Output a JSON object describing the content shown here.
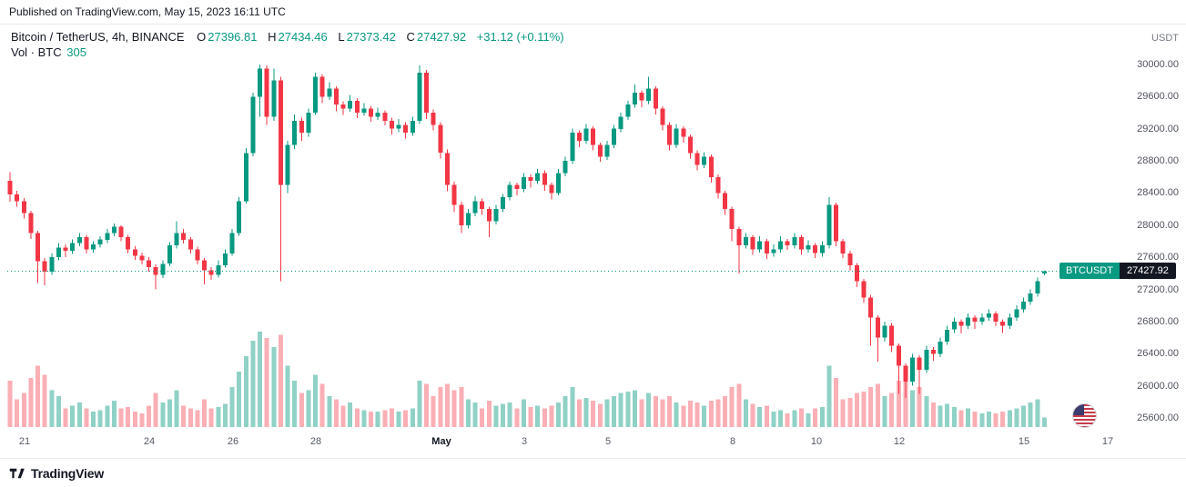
{
  "published_bar": {
    "text": "Published on TradingView.com, May 15, 2023 16:11 UTC"
  },
  "legend": {
    "title": "Bitcoin / TetherUS, 4h, BINANCE",
    "o_label": "O",
    "o_value": "27396.81",
    "h_label": "H",
    "h_value": "27434.46",
    "l_label": "L",
    "l_value": "27373.42",
    "c_label": "C",
    "c_value": "27427.92",
    "change": "+31.12 (+0.11%)",
    "vol_label": "Vol · BTC",
    "vol_value": "305"
  },
  "axis": {
    "currency": "USDT"
  },
  "price_badge": {
    "symbol": "BTCUSDT",
    "price": "27427.92"
  },
  "footer": {
    "brand": "TradingView"
  },
  "colors": {
    "up": "#089981",
    "down": "#F23645",
    "vol_up": "rgba(8,153,129,0.45)",
    "vol_down": "rgba(242,54,69,0.40)",
    "last_price_line": "#089981",
    "badge_symbol_bg": "#089981",
    "badge_price_bg": "#131722"
  },
  "chart_data": {
    "type": "candlestick",
    "symbol": "BTCUSDT",
    "exchange": "BINANCE",
    "interval": "4h",
    "last_price": 27427.92,
    "ohlc_current": {
      "o": 27396.81,
      "h": 27434.46,
      "l": 27373.42,
      "c": 27427.92,
      "change": 31.12,
      "change_pct": 0.11
    },
    "volume_current_btc": 305,
    "y_axis": {
      "min": 25600,
      "max": 30000,
      "step": 400,
      "labels": [
        "30000.00",
        "29600.00",
        "29200.00",
        "28800.00",
        "28400.00",
        "28000.00",
        "27600.00",
        "27200.00",
        "26800.00",
        "26400.00",
        "26000.00",
        "25600.00"
      ]
    },
    "x_axis": {
      "labels": [
        {
          "label": "21",
          "d": 0,
          "emphasis": false
        },
        {
          "label": "24",
          "d": 3,
          "emphasis": false
        },
        {
          "label": "26",
          "d": 5,
          "emphasis": false
        },
        {
          "label": "28",
          "d": 7,
          "emphasis": false
        },
        {
          "label": "May",
          "d": 10,
          "emphasis": true
        },
        {
          "label": "3",
          "d": 12,
          "emphasis": false
        },
        {
          "label": "5",
          "d": 14,
          "emphasis": false
        },
        {
          "label": "8",
          "d": 17,
          "emphasis": false
        },
        {
          "label": "10",
          "d": 19,
          "emphasis": false
        },
        {
          "label": "12",
          "d": 21,
          "emphasis": false
        },
        {
          "label": "15",
          "d": 24,
          "emphasis": false
        },
        {
          "label": "17",
          "d": 26,
          "emphasis": false
        }
      ]
    },
    "candles": [
      [
        28550,
        28660,
        28290,
        28380
      ],
      [
        28380,
        28430,
        28230,
        28300
      ],
      [
        28300,
        28340,
        28080,
        28150
      ],
      [
        28150,
        28180,
        27830,
        27900
      ],
      [
        27900,
        27930,
        27280,
        27550
      ],
      [
        27550,
        27590,
        27250,
        27420
      ],
      [
        27420,
        27650,
        27380,
        27600
      ],
      [
        27600,
        27780,
        27560,
        27720
      ],
      [
        27720,
        27760,
        27600,
        27680
      ],
      [
        27680,
        27820,
        27640,
        27780
      ],
      [
        27780,
        27900,
        27740,
        27850
      ],
      [
        27850,
        27880,
        27650,
        27700
      ],
      [
        27700,
        27800,
        27660,
        27760
      ],
      [
        27760,
        27860,
        27720,
        27820
      ],
      [
        27820,
        27950,
        27780,
        27900
      ],
      [
        27900,
        28020,
        27860,
        27980
      ],
      [
        27980,
        28000,
        27800,
        27850
      ],
      [
        27850,
        27880,
        27650,
        27700
      ],
      [
        27700,
        27740,
        27570,
        27620
      ],
      [
        27620,
        27660,
        27510,
        27560
      ],
      [
        27560,
        27600,
        27420,
        27480
      ],
      [
        27480,
        27510,
        27200,
        27380
      ],
      [
        27380,
        27560,
        27340,
        27520
      ],
      [
        27520,
        27790,
        27490,
        27750
      ],
      [
        27750,
        28050,
        27710,
        27900
      ],
      [
        27900,
        27950,
        27770,
        27820
      ],
      [
        27820,
        27850,
        27650,
        27700
      ],
      [
        27700,
        27730,
        27510,
        27560
      ],
      [
        27560,
        27590,
        27260,
        27440
      ],
      [
        27440,
        27480,
        27320,
        27380
      ],
      [
        27380,
        27560,
        27350,
        27500
      ],
      [
        27500,
        27700,
        27470,
        27650
      ],
      [
        27650,
        27950,
        27620,
        27900
      ],
      [
        27900,
        28350,
        27870,
        28300
      ],
      [
        28300,
        28960,
        28270,
        28900
      ],
      [
        28900,
        29650,
        28860,
        29600
      ],
      [
        29600,
        30000,
        29350,
        29950
      ],
      [
        29950,
        29990,
        29250,
        29350
      ],
      [
        29350,
        29950,
        29300,
        29800
      ],
      [
        29800,
        29850,
        27300,
        28500
      ],
      [
        28500,
        29050,
        28400,
        29000
      ],
      [
        29000,
        29380,
        28950,
        29300
      ],
      [
        29300,
        29340,
        29050,
        29150
      ],
      [
        29150,
        29450,
        29100,
        29400
      ],
      [
        29400,
        29900,
        29370,
        29850
      ],
      [
        29850,
        29880,
        29520,
        29600
      ],
      [
        29600,
        29780,
        29560,
        29700
      ],
      [
        29700,
        29730,
        29420,
        29500
      ],
      [
        29500,
        29540,
        29370,
        29450
      ],
      [
        29450,
        29620,
        29410,
        29550
      ],
      [
        29550,
        29580,
        29330,
        29400
      ],
      [
        29400,
        29520,
        29360,
        29450
      ],
      [
        29450,
        29480,
        29290,
        29350
      ],
      [
        29350,
        29460,
        29310,
        29400
      ],
      [
        29400,
        29430,
        29240,
        29300
      ],
      [
        29300,
        29340,
        29130,
        29200
      ],
      [
        29200,
        29320,
        29160,
        29250
      ],
      [
        29250,
        29280,
        29080,
        29150
      ],
      [
        29150,
        29350,
        29110,
        29300
      ],
      [
        29300,
        29990,
        29260,
        29900
      ],
      [
        29900,
        29930,
        29320,
        29400
      ],
      [
        29400,
        29440,
        29180,
        29250
      ],
      [
        29250,
        29280,
        28830,
        28900
      ],
      [
        28900,
        28940,
        28420,
        28500
      ],
      [
        28500,
        28540,
        28160,
        28250
      ],
      [
        28250,
        28290,
        27900,
        28000
      ],
      [
        28000,
        28200,
        27960,
        28150
      ],
      [
        28150,
        28360,
        28110,
        28300
      ],
      [
        28300,
        28330,
        28130,
        28200
      ],
      [
        28200,
        28230,
        27850,
        28050
      ],
      [
        28050,
        28250,
        28010,
        28200
      ],
      [
        28200,
        28390,
        28160,
        28350
      ],
      [
        28350,
        28540,
        28310,
        28500
      ],
      [
        28500,
        28530,
        28370,
        28450
      ],
      [
        28450,
        28650,
        28410,
        28600
      ],
      [
        28600,
        28630,
        28470,
        28550
      ],
      [
        28550,
        28700,
        28510,
        28650
      ],
      [
        28650,
        28680,
        28430,
        28500
      ],
      [
        28500,
        28530,
        28320,
        28400
      ],
      [
        28400,
        28700,
        28370,
        28650
      ],
      [
        28650,
        28850,
        28610,
        28800
      ],
      [
        28800,
        29200,
        28760,
        29150
      ],
      [
        29150,
        29180,
        28970,
        29050
      ],
      [
        29050,
        29260,
        29010,
        29200
      ],
      [
        29200,
        29230,
        28930,
        29000
      ],
      [
        29000,
        29030,
        28790,
        28850
      ],
      [
        28850,
        29050,
        28810,
        29000
      ],
      [
        29000,
        29250,
        28960,
        29200
      ],
      [
        29200,
        29400,
        29160,
        29350
      ],
      [
        29350,
        29550,
        29310,
        29500
      ],
      [
        29500,
        29750,
        29460,
        29650
      ],
      [
        29650,
        29680,
        29470,
        29550
      ],
      [
        29550,
        29850,
        29510,
        29700
      ],
      [
        29700,
        29730,
        29380,
        29450
      ],
      [
        29450,
        29480,
        29180,
        29250
      ],
      [
        29250,
        29280,
        28930,
        29000
      ],
      [
        29000,
        29260,
        28960,
        29200
      ],
      [
        29200,
        29230,
        29030,
        29100
      ],
      [
        29100,
        29130,
        28830,
        28900
      ],
      [
        28900,
        28930,
        28680,
        28750
      ],
      [
        28750,
        28910,
        28710,
        28850
      ],
      [
        28850,
        28880,
        28530,
        28600
      ],
      [
        28600,
        28630,
        28330,
        28400
      ],
      [
        28400,
        28430,
        28130,
        28200
      ],
      [
        28200,
        28230,
        27800,
        27950
      ],
      [
        27950,
        27980,
        27400,
        27750
      ],
      [
        27750,
        27900,
        27710,
        27850
      ],
      [
        27850,
        27880,
        27630,
        27700
      ],
      [
        27700,
        27860,
        27660,
        27800
      ],
      [
        27800,
        27830,
        27580,
        27650
      ],
      [
        27650,
        27760,
        27610,
        27700
      ],
      [
        27700,
        27860,
        27660,
        27800
      ],
      [
        27800,
        27830,
        27690,
        27750
      ],
      [
        27750,
        27900,
        27710,
        27850
      ],
      [
        27850,
        27880,
        27630,
        27700
      ],
      [
        27700,
        27810,
        27660,
        27750
      ],
      [
        27750,
        27780,
        27590,
        27650
      ],
      [
        27650,
        27800,
        27610,
        27750
      ],
      [
        27750,
        28350,
        27710,
        28250
      ],
      [
        28250,
        28280,
        27740,
        27800
      ],
      [
        27800,
        27830,
        27590,
        27650
      ],
      [
        27650,
        27680,
        27430,
        27500
      ],
      [
        27500,
        27530,
        27230,
        27300
      ],
      [
        27300,
        27330,
        27030,
        27100
      ],
      [
        27100,
        27130,
        26500,
        26850
      ],
      [
        26850,
        26880,
        26300,
        26600
      ],
      [
        26600,
        26800,
        26550,
        26750
      ],
      [
        26750,
        26780,
        26420,
        26500
      ],
      [
        26500,
        26530,
        25900,
        26250
      ],
      [
        26250,
        26280,
        25850,
        26050
      ],
      [
        26050,
        26400,
        26000,
        26350
      ],
      [
        26350,
        26380,
        25900,
        26200
      ],
      [
        26200,
        26500,
        26160,
        26450
      ],
      [
        26450,
        26480,
        26310,
        26400
      ],
      [
        26400,
        26600,
        26360,
        26550
      ],
      [
        26550,
        26750,
        26510,
        26700
      ],
      [
        26700,
        26850,
        26660,
        26800
      ],
      [
        26800,
        26830,
        26650,
        26750
      ],
      [
        26750,
        26900,
        26710,
        26850
      ],
      [
        26850,
        26880,
        26710,
        26800
      ],
      [
        26800,
        26900,
        26760,
        26850
      ],
      [
        26850,
        26950,
        26810,
        26900
      ],
      [
        26900,
        26930,
        26740,
        26800
      ],
      [
        26800,
        26830,
        26660,
        26750
      ],
      [
        26750,
        26900,
        26710,
        26850
      ],
      [
        26850,
        27000,
        26810,
        26950
      ],
      [
        26950,
        27100,
        26910,
        27050
      ],
      [
        27050,
        27200,
        27010,
        27150
      ],
      [
        27150,
        27350,
        27110,
        27300
      ],
      [
        27396.81,
        27434.46,
        27373.42,
        27427.92
      ]
    ],
    "volumes": [
      1500,
      900,
      1100,
      1600,
      2000,
      1700,
      1200,
      1000,
      600,
      700,
      800,
      600,
      500,
      550,
      700,
      850,
      600,
      650,
      500,
      450,
      700,
      1100,
      800,
      900,
      1200,
      700,
      600,
      550,
      900,
      600,
      650,
      750,
      1300,
      1800,
      2300,
      2800,
      3100,
      2900,
      2600,
      3000,
      2000,
      1500,
      1100,
      1200,
      1700,
      1400,
      1000,
      900,
      700,
      800,
      600,
      550,
      500,
      500,
      550,
      600,
      500,
      550,
      600,
      1500,
      1400,
      1000,
      1300,
      1400,
      1200,
      1300,
      900,
      800,
      600,
      850,
      700,
      750,
      800,
      600,
      900,
      650,
      700,
      600,
      700,
      800,
      1000,
      1300,
      900,
      950,
      850,
      750,
      900,
      1000,
      1100,
      1150,
      1200,
      900,
      1100,
      1000,
      900,
      1000,
      800,
      700,
      850,
      800,
      700,
      850,
      900,
      1000,
      1300,
      1400,
      900,
      750,
      650,
      700,
      500,
      550,
      450,
      550,
      600,
      450,
      600,
      650,
      2000,
      1600,
      900,
      950,
      1100,
      1150,
      1300,
      1400,
      1000,
      1100,
      1500,
      1600,
      1200,
      1300,
      1000,
      800,
      700,
      750,
      650,
      550,
      600,
      500,
      450,
      500,
      450,
      500,
      550,
      600,
      700,
      800,
      900,
      305
    ]
  }
}
